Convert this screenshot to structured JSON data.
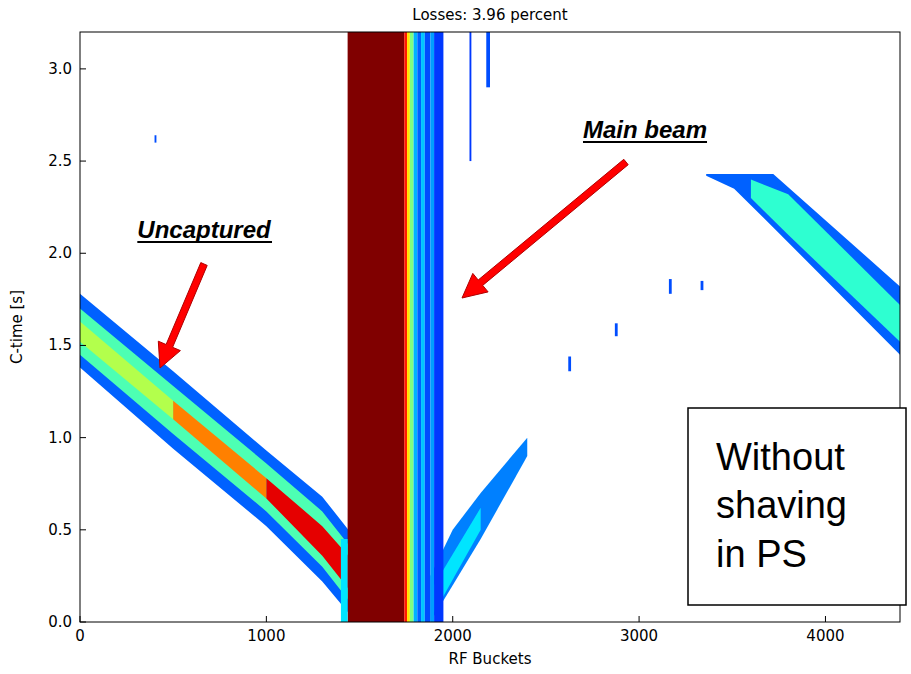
{
  "chart_data": {
    "type": "heatmap",
    "title": "Losses: 3.96 percent",
    "x_label": "RF Buckets",
    "y_label": "C-time [s]",
    "xlim": [
      0,
      4400
    ],
    "ylim": [
      0,
      3.2
    ],
    "xticks": [
      0,
      1000,
      2000,
      3000,
      4000
    ],
    "yticks": [
      {
        "value": 0,
        "label": "0.0"
      },
      0.5,
      {
        "value": 1,
        "label": "1.0"
      },
      1.5,
      {
        "value": 2,
        "label": "2.0"
      },
      2.5,
      {
        "value": 3,
        "label": "3.0"
      }
    ],
    "zlim": [
      0,
      1
    ],
    "grid": false,
    "bands": [
      {
        "x": [
          0,
          500,
          1000,
          1300,
          1440
        ],
        "y_low": [
          1.38,
          0.94,
          0.52,
          0.22,
          0.05
        ],
        "y_high": [
          1.78,
          1.36,
          0.93,
          0.68,
          0.5
        ],
        "value": 0.22
      },
      {
        "x": [
          0,
          500,
          1000,
          1300,
          1440
        ],
        "y_low": [
          1.45,
          1.02,
          0.6,
          0.3,
          0.12
        ],
        "y_high": [
          1.7,
          1.28,
          0.86,
          0.6,
          0.42
        ],
        "value": 0.45
      },
      {
        "x": [
          0,
          500
        ],
        "y_low": [
          1.52,
          1.1
        ],
        "y_high": [
          1.63,
          1.2
        ],
        "value": 0.55
      },
      {
        "x": [
          500,
          1000
        ],
        "y_low": [
          1.1,
          0.67
        ],
        "y_high": [
          1.2,
          0.78
        ],
        "value": 0.75
      },
      {
        "x": [
          1000,
          1300,
          1440
        ],
        "y_low": [
          0.67,
          0.36,
          0.18
        ],
        "y_high": [
          0.78,
          0.52,
          0.36
        ],
        "value": 0.9
      },
      {
        "x": [
          1880,
          2000,
          2150,
          2400
        ],
        "y_low": [
          0.0,
          0.2,
          0.45,
          0.9
        ],
        "y_high": [
          0.25,
          0.5,
          0.7,
          1.0
        ],
        "value": 0.25
      },
      {
        "x": [
          1900,
          2150
        ],
        "y_low": [
          0.05,
          0.5
        ],
        "y_high": [
          0.2,
          0.62
        ],
        "value": 0.35
      },
      {
        "x": [
          3360,
          3510,
          3720,
          4400
        ],
        "y_low": [
          2.42,
          2.35,
          2.14,
          1.45
        ],
        "y_high": [
          2.43,
          2.43,
          2.43,
          1.82
        ],
        "value": 0.22
      },
      {
        "x": [
          3600,
          3800,
          4400
        ],
        "y_low": [
          2.3,
          2.1,
          1.52
        ],
        "y_high": [
          2.4,
          2.32,
          1.72
        ],
        "value": 0.42
      }
    ],
    "cells": [
      [
        1436,
        1740,
        0,
        3.2,
        1.0
      ],
      [
        1740,
        1755,
        0,
        3.2,
        0.85
      ],
      [
        1755,
        1770,
        0,
        3.2,
        0.65
      ],
      [
        1770,
        1790,
        0,
        3.2,
        0.5
      ],
      [
        1790,
        1810,
        0,
        3.2,
        0.3
      ],
      [
        1810,
        1830,
        0,
        3.2,
        0.22
      ],
      [
        1830,
        1850,
        0,
        3.2,
        0.32
      ],
      [
        1850,
        1880,
        0,
        3.2,
        0.2
      ],
      [
        1880,
        1900,
        0,
        3.2,
        0.28
      ],
      [
        1900,
        1950,
        0,
        3.2,
        0.18
      ],
      [
        1400,
        1436,
        0,
        0.45,
        0.35
      ],
      [
        2180,
        2200,
        2.9,
        3.2,
        0.2
      ],
      [
        2090,
        2100,
        2.5,
        3.2,
        0.18
      ],
      [
        400,
        410,
        2.6,
        2.64,
        0.2
      ],
      [
        2620,
        2635,
        1.36,
        1.44,
        0.2
      ],
      [
        2870,
        2885,
        1.55,
        1.62,
        0.2
      ],
      [
        3160,
        3175,
        1.78,
        1.86,
        0.2
      ],
      [
        3330,
        3345,
        1.8,
        1.85,
        0.2
      ]
    ],
    "annotations": [
      "Uncaptured",
      "Main beam",
      "Without shaving in PS"
    ]
  }
}
